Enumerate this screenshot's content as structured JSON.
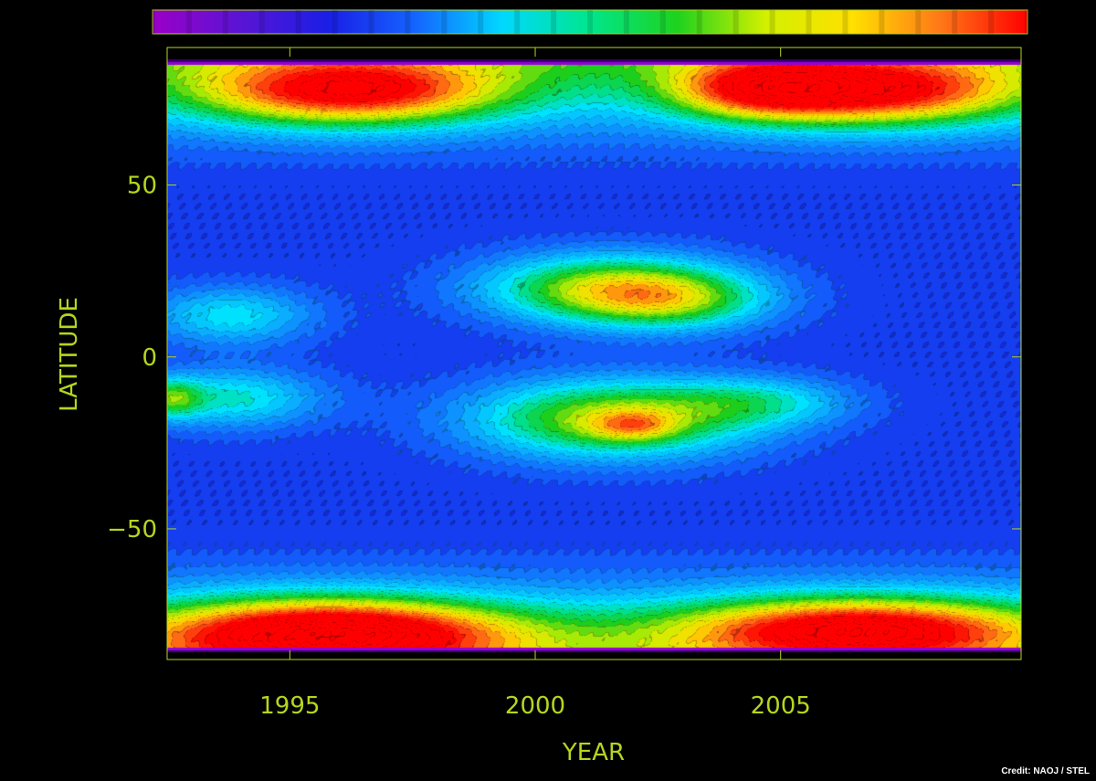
{
  "chart_data": {
    "type": "heatmap",
    "title": "",
    "xlabel": "YEAR",
    "ylabel": "LATITUDE",
    "xlim": [
      1992.5,
      2009.9
    ],
    "ylim": [
      -88,
      90
    ],
    "x_ticks": [
      1995,
      2000,
      2005
    ],
    "y_ticks": [
      50,
      0,
      -50
    ],
    "grid": false,
    "colorbar": {
      "position": "top",
      "colors": [
        "#9b00c8",
        "#5a14d4",
        "#1a1ee6",
        "#1464ff",
        "#00d8ff",
        "#00e68c",
        "#1ed21e",
        "#d2f000",
        "#ffe000",
        "#ff7818",
        "#ff0000"
      ]
    },
    "features": [
      {
        "x": 1996.2,
        "y": 77,
        "sx": 2.2,
        "sy": 7,
        "amp": 1.0
      },
      {
        "x": 2006.8,
        "y": 77,
        "sx": 2.2,
        "sy": 7,
        "amp": 1.0
      },
      {
        "x": 2004.5,
        "y": 78,
        "sx": 1.2,
        "sy": 6,
        "amp": 0.55
      },
      {
        "x": 1995.8,
        "y": -80,
        "sx": 2.6,
        "sy": 7,
        "amp": 1.2
      },
      {
        "x": 2006.6,
        "y": -79,
        "sx": 2.6,
        "sy": 6.5,
        "amp": 1.05
      },
      {
        "x": 2001.5,
        "y": 20,
        "sx": 1.8,
        "sy": 7,
        "amp": 0.75
      },
      {
        "x": 2002.8,
        "y": 16,
        "sx": 1.4,
        "sy": 6,
        "amp": 0.45
      },
      {
        "x": 2001.6,
        "y": -18,
        "sx": 2.0,
        "sy": 8,
        "amp": 0.8
      },
      {
        "x": 2002.0,
        "y": -20,
        "sx": 0.6,
        "sy": 3,
        "amp": 0.35
      },
      {
        "x": 2004.6,
        "y": -13,
        "sx": 1.3,
        "sy": 5,
        "amp": 0.35
      },
      {
        "x": 1993.8,
        "y": 12,
        "sx": 1.2,
        "sy": 6,
        "amp": 0.4
      },
      {
        "x": 1993.8,
        "y": -12,
        "sx": 1.3,
        "sy": 6,
        "amp": 0.45
      },
      {
        "x": 1992.6,
        "y": -12,
        "sx": 0.4,
        "sy": 4,
        "amp": 0.45
      }
    ]
  },
  "credit": "Credit: NAOJ / STEL"
}
